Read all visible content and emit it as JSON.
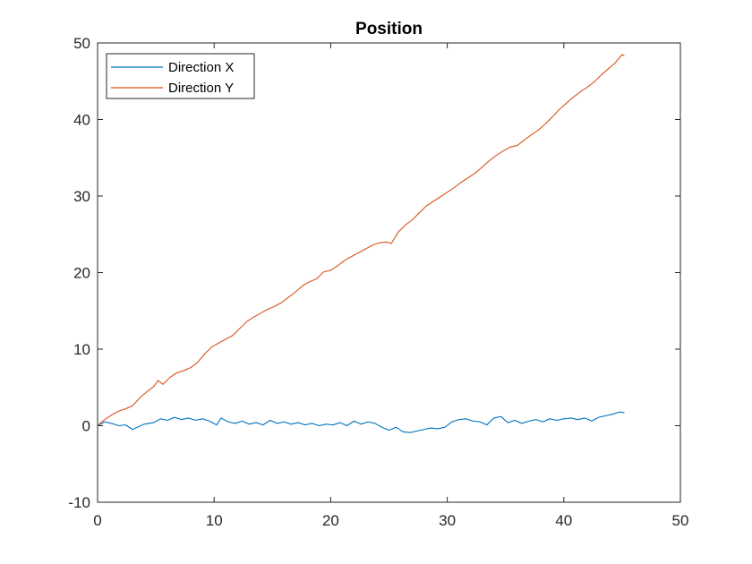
{
  "chart_data": {
    "type": "line",
    "title": "Position",
    "xlabel": "",
    "ylabel": "",
    "xlim": [
      0,
      50
    ],
    "ylim": [
      -10,
      50
    ],
    "xticks": [
      "0",
      "10",
      "20",
      "30",
      "40",
      "50"
    ],
    "yticks": [
      "-10",
      "0",
      "10",
      "20",
      "30",
      "40",
      "50"
    ],
    "grid": false,
    "legend_position": "top-left",
    "series": [
      {
        "name": "Direction X",
        "color": "#0072BD",
        "points": [
          [
            0,
            0
          ],
          [
            0.6,
            0.5
          ],
          [
            1.2,
            0.3
          ],
          [
            1.8,
            0.0
          ],
          [
            2.4,
            0.1
          ],
          [
            3.0,
            -0.5
          ],
          [
            3.4,
            -0.2
          ],
          [
            4.0,
            0.2
          ],
          [
            4.8,
            0.4
          ],
          [
            5.4,
            0.9
          ],
          [
            6.0,
            0.7
          ],
          [
            6.6,
            1.1
          ],
          [
            7.2,
            0.8
          ],
          [
            7.8,
            1.0
          ],
          [
            8.4,
            0.7
          ],
          [
            9.0,
            0.9
          ],
          [
            9.6,
            0.6
          ],
          [
            10.2,
            0.1
          ],
          [
            10.6,
            1.0
          ],
          [
            11.2,
            0.5
          ],
          [
            11.8,
            0.3
          ],
          [
            12.4,
            0.6
          ],
          [
            13.0,
            0.2
          ],
          [
            13.6,
            0.4
          ],
          [
            14.2,
            0.1
          ],
          [
            14.8,
            0.7
          ],
          [
            15.4,
            0.3
          ],
          [
            16.0,
            0.5
          ],
          [
            16.6,
            0.2
          ],
          [
            17.2,
            0.4
          ],
          [
            17.8,
            0.1
          ],
          [
            18.4,
            0.3
          ],
          [
            19.0,
            0.0
          ],
          [
            19.6,
            0.2
          ],
          [
            20.2,
            0.1
          ],
          [
            20.8,
            0.4
          ],
          [
            21.4,
            0.0
          ],
          [
            22.0,
            0.6
          ],
          [
            22.6,
            0.2
          ],
          [
            23.2,
            0.5
          ],
          [
            23.8,
            0.3
          ],
          [
            24.4,
            -0.2
          ],
          [
            25.0,
            -0.6
          ],
          [
            25.6,
            -0.2
          ],
          [
            26.2,
            -0.8
          ],
          [
            26.8,
            -0.9
          ],
          [
            27.4,
            -0.7
          ],
          [
            28.0,
            -0.5
          ],
          [
            28.6,
            -0.3
          ],
          [
            29.2,
            -0.4
          ],
          [
            29.8,
            -0.2
          ],
          [
            30.4,
            0.5
          ],
          [
            31.0,
            0.8
          ],
          [
            31.6,
            0.9
          ],
          [
            32.2,
            0.6
          ],
          [
            32.8,
            0.5
          ],
          [
            33.4,
            0.1
          ],
          [
            34.0,
            1.0
          ],
          [
            34.6,
            1.2
          ],
          [
            35.2,
            0.4
          ],
          [
            35.8,
            0.7
          ],
          [
            36.4,
            0.3
          ],
          [
            37.0,
            0.6
          ],
          [
            37.6,
            0.8
          ],
          [
            38.2,
            0.5
          ],
          [
            38.8,
            0.9
          ],
          [
            39.4,
            0.7
          ],
          [
            40.0,
            0.9
          ],
          [
            40.6,
            1.0
          ],
          [
            41.2,
            0.8
          ],
          [
            41.8,
            1.0
          ],
          [
            42.4,
            0.6
          ],
          [
            43.0,
            1.1
          ],
          [
            43.6,
            1.3
          ],
          [
            44.2,
            1.5
          ],
          [
            44.8,
            1.8
          ],
          [
            45.2,
            1.7
          ]
        ]
      },
      {
        "name": "Direction Y",
        "color": "#D95319",
        "points": [
          [
            0,
            0
          ],
          [
            0.6,
            0.8
          ],
          [
            1.2,
            1.4
          ],
          [
            1.8,
            1.9
          ],
          [
            2.4,
            2.2
          ],
          [
            3.0,
            2.6
          ],
          [
            3.6,
            3.6
          ],
          [
            4.2,
            4.4
          ],
          [
            4.8,
            5.1
          ],
          [
            5.2,
            5.9
          ],
          [
            5.6,
            5.4
          ],
          [
            6.2,
            6.3
          ],
          [
            6.8,
            6.9
          ],
          [
            7.4,
            7.2
          ],
          [
            8.0,
            7.6
          ],
          [
            8.6,
            8.3
          ],
          [
            9.2,
            9.4
          ],
          [
            9.8,
            10.3
          ],
          [
            10.4,
            10.8
          ],
          [
            11.0,
            11.3
          ],
          [
            11.6,
            11.8
          ],
          [
            12.2,
            12.7
          ],
          [
            12.8,
            13.6
          ],
          [
            13.4,
            14.2
          ],
          [
            14.0,
            14.7
          ],
          [
            14.6,
            15.2
          ],
          [
            15.2,
            15.6
          ],
          [
            15.8,
            16.1
          ],
          [
            16.4,
            16.8
          ],
          [
            17.0,
            17.5
          ],
          [
            17.6,
            18.3
          ],
          [
            18.2,
            18.8
          ],
          [
            18.8,
            19.2
          ],
          [
            19.4,
            20.1
          ],
          [
            20.0,
            20.3
          ],
          [
            20.6,
            20.9
          ],
          [
            21.2,
            21.6
          ],
          [
            21.8,
            22.1
          ],
          [
            22.4,
            22.6
          ],
          [
            23.0,
            23.1
          ],
          [
            23.6,
            23.6
          ],
          [
            24.2,
            23.9
          ],
          [
            24.8,
            24.0
          ],
          [
            25.2,
            23.8
          ],
          [
            25.8,
            25.3
          ],
          [
            26.4,
            26.2
          ],
          [
            27.0,
            26.9
          ],
          [
            27.6,
            27.8
          ],
          [
            28.2,
            28.7
          ],
          [
            28.8,
            29.3
          ],
          [
            29.4,
            29.9
          ],
          [
            30.0,
            30.5
          ],
          [
            30.6,
            31.1
          ],
          [
            31.2,
            31.8
          ],
          [
            31.8,
            32.4
          ],
          [
            32.4,
            33.0
          ],
          [
            33.0,
            33.8
          ],
          [
            33.6,
            34.6
          ],
          [
            34.2,
            35.3
          ],
          [
            34.8,
            35.9
          ],
          [
            35.4,
            36.4
          ],
          [
            36.0,
            36.6
          ],
          [
            36.6,
            37.3
          ],
          [
            37.2,
            38.0
          ],
          [
            37.8,
            38.6
          ],
          [
            38.4,
            39.4
          ],
          [
            39.0,
            40.3
          ],
          [
            39.6,
            41.3
          ],
          [
            40.2,
            42.1
          ],
          [
            40.8,
            42.9
          ],
          [
            41.4,
            43.6
          ],
          [
            42.0,
            44.2
          ],
          [
            42.6,
            44.9
          ],
          [
            43.2,
            45.8
          ],
          [
            43.8,
            46.6
          ],
          [
            44.4,
            47.4
          ],
          [
            45.0,
            48.5
          ],
          [
            45.2,
            48.3
          ]
        ]
      }
    ]
  }
}
